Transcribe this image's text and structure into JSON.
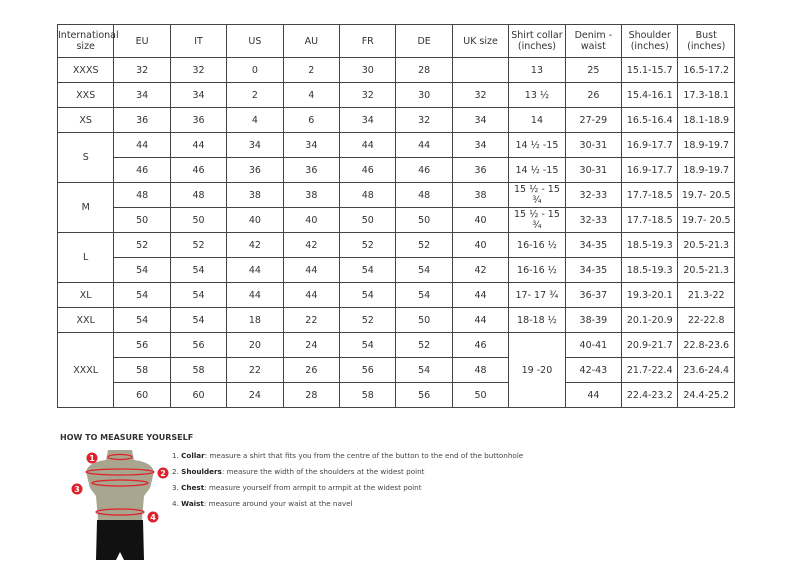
{
  "headers": [
    "International size",
    "EU",
    "IT",
    "US",
    "AU",
    "FR",
    "DE",
    "UK size",
    "Shirt collar (inches)",
    "Denim - waist",
    "Shoulder (inches)",
    "Bust (inches)"
  ],
  "groups": [
    {
      "size": "XXXS",
      "rows": [
        [
          "32",
          "32",
          "0",
          "2",
          "30",
          "28",
          "",
          "13",
          "25",
          "15.1-15.7",
          "16.5-17.2"
        ]
      ]
    },
    {
      "size": "XXS",
      "rows": [
        [
          "34",
          "34",
          "2",
          "4",
          "32",
          "30",
          "32",
          "13 ½",
          "26",
          "15.4-16.1",
          "17.3-18.1"
        ]
      ]
    },
    {
      "size": "XS",
      "rows": [
        [
          "36",
          "36",
          "4",
          "6",
          "34",
          "32",
          "34",
          "14",
          "27-29",
          "16.5-16.4",
          "18.1-18.9"
        ]
      ]
    },
    {
      "size": "S",
      "rows": [
        [
          "44",
          "44",
          "34",
          "34",
          "44",
          "44",
          "34",
          "14 ½ -15",
          "30-31",
          "16.9-17.7",
          "18.9-19.7"
        ],
        [
          "46",
          "46",
          "36",
          "36",
          "46",
          "46",
          "36",
          "14 ½ -15",
          "30-31",
          "16.9-17.7",
          "18.9-19.7"
        ]
      ]
    },
    {
      "size": "M",
      "rows": [
        [
          "48",
          "48",
          "38",
          "38",
          "48",
          "48",
          "38",
          "15 ½ - 15 ¾",
          "32-33",
          "17.7-18.5",
          "19.7- 20.5"
        ],
        [
          "50",
          "50",
          "40",
          "40",
          "50",
          "50",
          "40",
          "15 ½ - 15 ¾",
          "32-33",
          "17.7-18.5",
          "19.7- 20.5"
        ]
      ]
    },
    {
      "size": "L",
      "rows": [
        [
          "52",
          "52",
          "42",
          "42",
          "52",
          "52",
          "40",
          "16-16 ½",
          "34-35",
          "18.5-19.3",
          "20.5-21.3"
        ],
        [
          "54",
          "54",
          "44",
          "44",
          "54",
          "54",
          "42",
          "16-16 ½",
          "34-35",
          "18.5-19.3",
          "20.5-21.3"
        ]
      ]
    },
    {
      "size": "XL",
      "rows": [
        [
          "54",
          "54",
          "44",
          "44",
          "54",
          "54",
          "44",
          "17- 17 ¾",
          "36-37",
          "19.3-20.1",
          "21.3-22"
        ]
      ]
    },
    {
      "size": "XXL",
      "rows": [
        [
          "54",
          "54",
          "18",
          "22",
          "52",
          "50",
          "44",
          "18-18 ½",
          "38-39",
          "20.1-20.9",
          "22-22.8"
        ]
      ]
    },
    {
      "size": "XXXL",
      "collar": "19 -20",
      "rows": [
        [
          "56",
          "56",
          "20",
          "24",
          "54",
          "52",
          "46",
          "",
          "40-41",
          "20.9-21.7",
          "22.8-23.6"
        ],
        [
          "58",
          "58",
          "22",
          "26",
          "56",
          "54",
          "48",
          "",
          "42-43",
          "21.7-22.4",
          "23.6-24.4"
        ],
        [
          "60",
          "60",
          "24",
          "28",
          "58",
          "56",
          "50",
          "",
          "44",
          "22.4-23.2",
          "24.4-25.2"
        ]
      ]
    }
  ],
  "howto": {
    "title": "HOW TO MEASURE YOURSELF",
    "steps": [
      {
        "n": "1.",
        "term": "Collar",
        "text": ": measure a shirt that fits you from the centre of the button to the end of the buttonhole"
      },
      {
        "n": "2.",
        "term": "Shoulders",
        "text": ": measure the width of the shoulders at the widest point"
      },
      {
        "n": "3.",
        "term": "Chest",
        "text": ": measure yourself from armpit to armpit at the widest point"
      },
      {
        "n": "4.",
        "term": "Waist",
        "text": ": measure around your waist at the navel"
      }
    ],
    "markers": [
      "1",
      "2",
      "3",
      "4"
    ]
  },
  "colors": {
    "marker": "#e0202a",
    "torso": "#a8a68f",
    "shorts": "#111111"
  }
}
